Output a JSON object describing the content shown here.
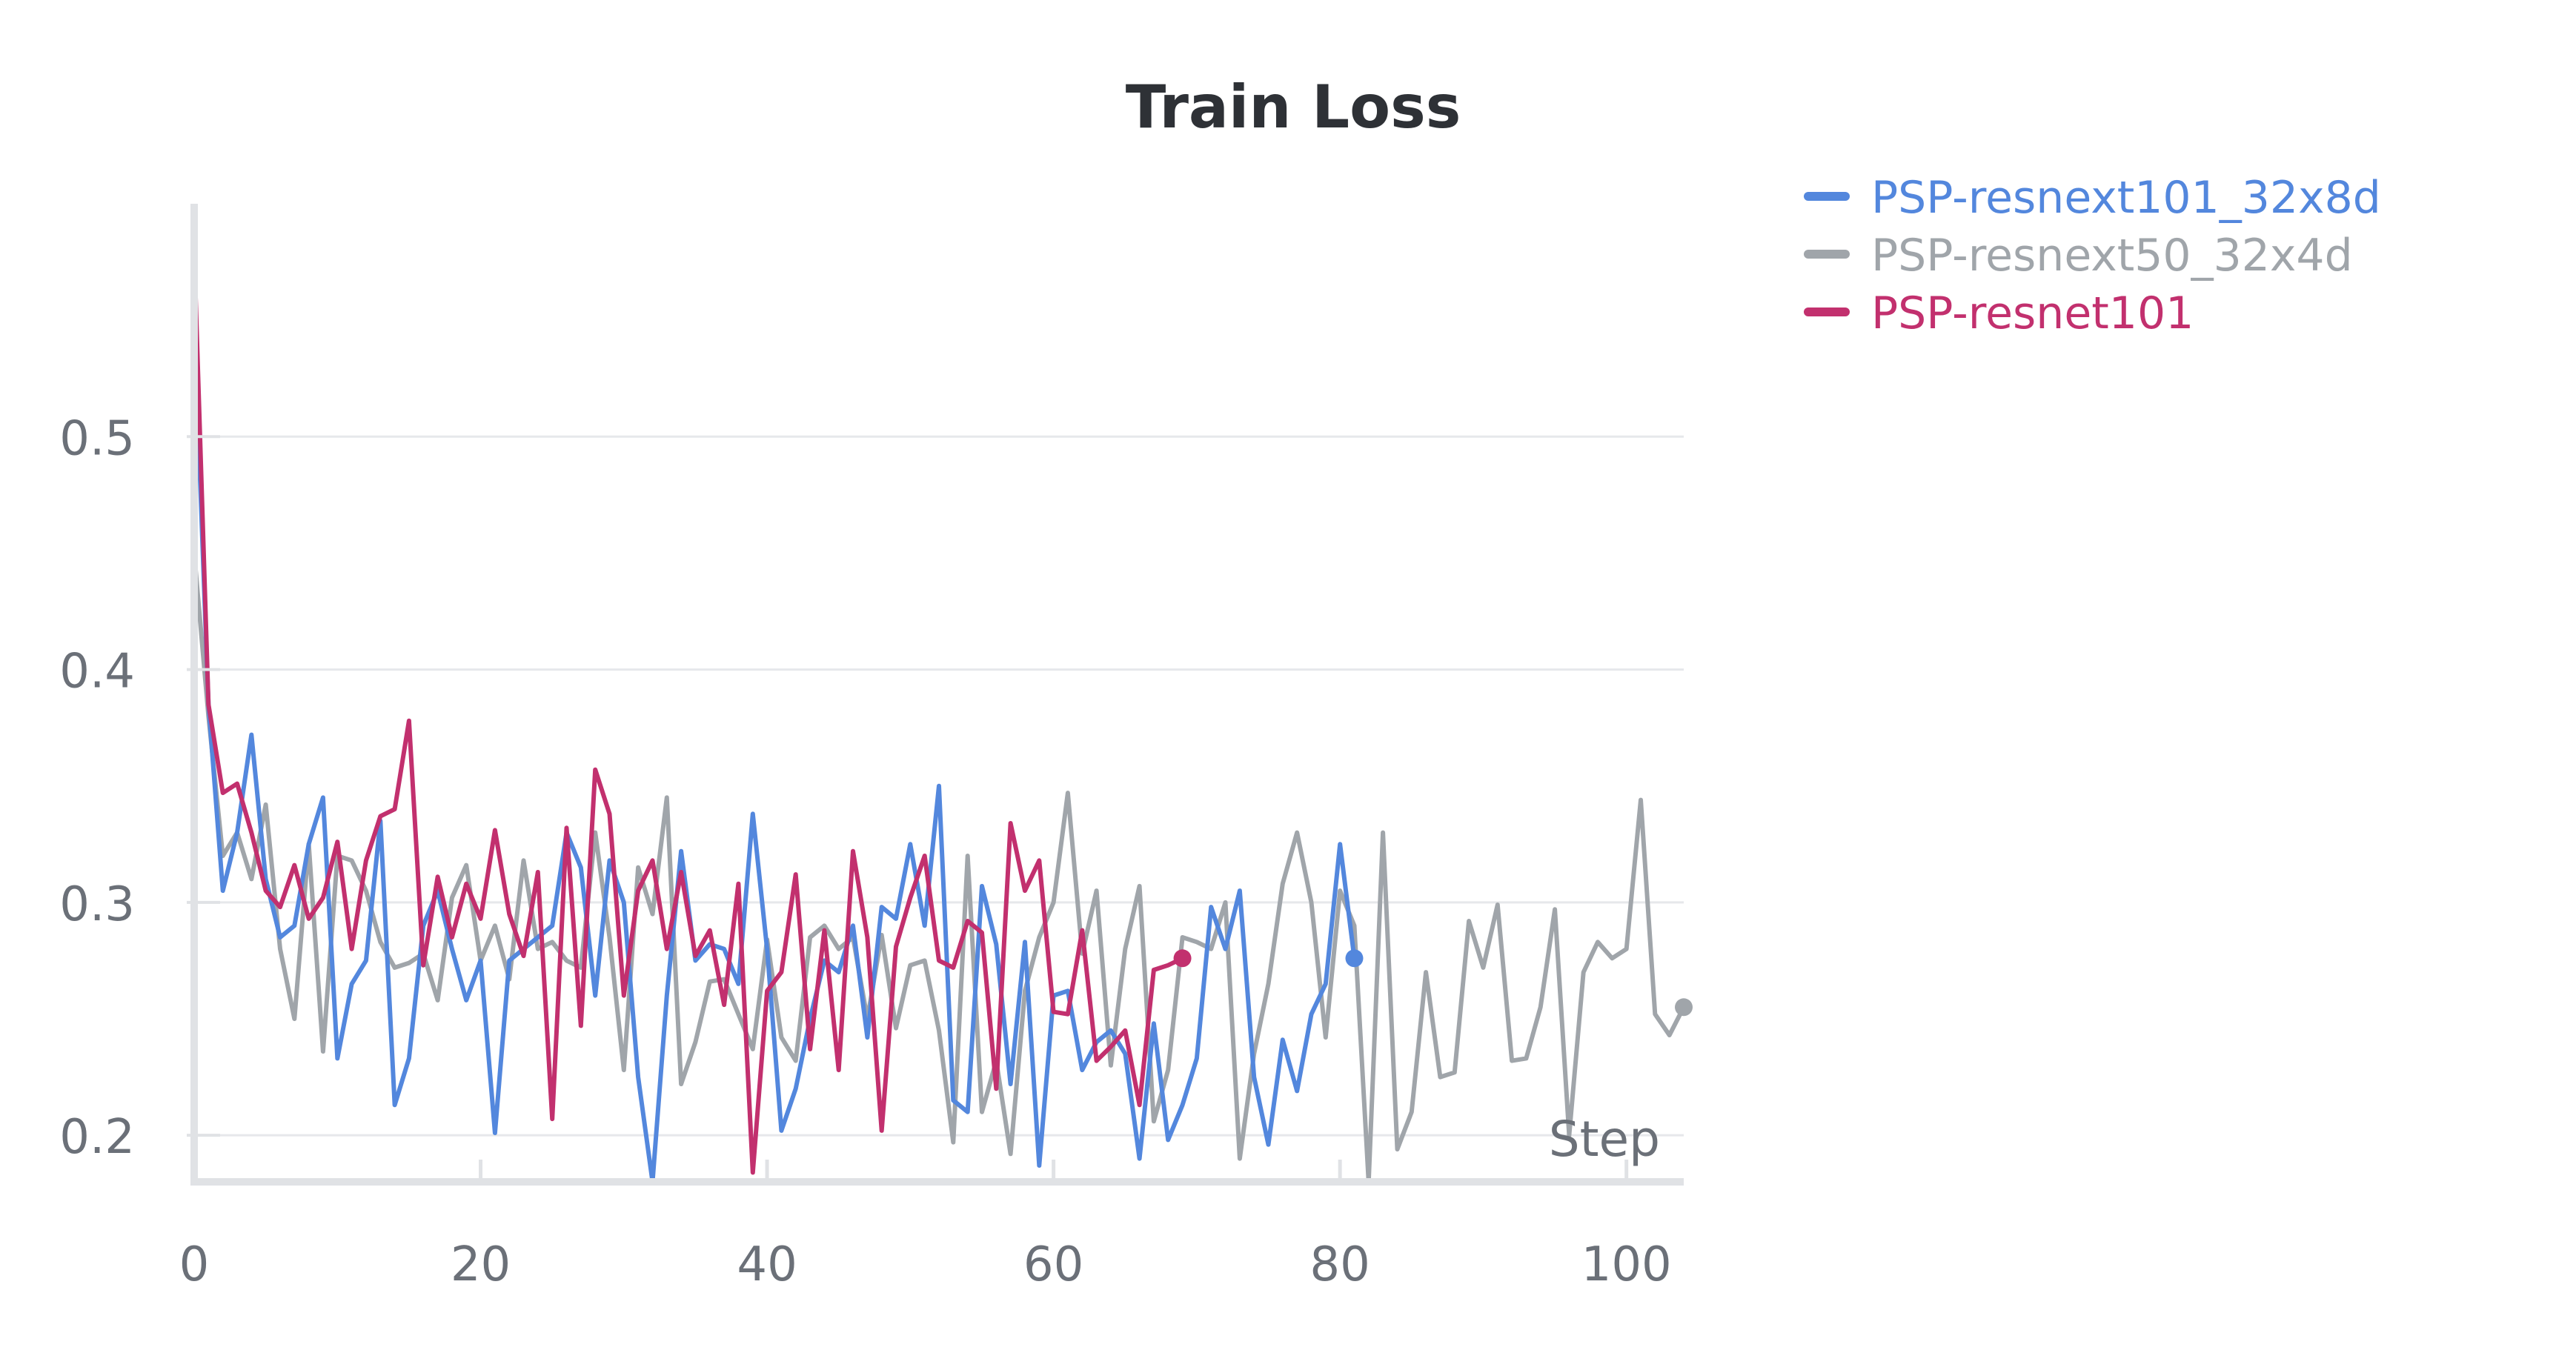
{
  "chart_data": {
    "type": "line",
    "title": "Train Loss",
    "xlabel": "Step",
    "ylabel": "",
    "xlim": [
      0,
      104
    ],
    "ylim": [
      0.18,
      0.6
    ],
    "x_ticks": [
      0,
      20,
      40,
      60,
      80,
      100
    ],
    "y_ticks": [
      0.2,
      0.3,
      0.4,
      0.5
    ],
    "x_tick_labels": [
      "0",
      "20",
      "40",
      "60",
      "80",
      "100"
    ],
    "y_tick_labels": [
      "0.2",
      "0.3",
      "0.4",
      "0.5"
    ],
    "grid": "horizontal",
    "legend_position": "top-right",
    "series": [
      {
        "name": "PSP-resnext101_32x8d",
        "color": "#5387dd",
        "end_marker": true,
        "values": [
          0.55,
          0.385,
          0.305,
          0.33,
          0.372,
          0.31,
          0.285,
          0.29,
          0.325,
          0.345,
          0.233,
          0.265,
          0.275,
          0.335,
          0.213,
          0.233,
          0.29,
          0.305,
          0.28,
          0.258,
          0.275,
          0.201,
          0.275,
          0.28,
          0.285,
          0.29,
          0.33,
          0.315,
          0.26,
          0.318,
          0.3,
          0.225,
          0.18,
          0.26,
          0.322,
          0.275,
          0.282,
          0.28,
          0.265,
          0.338,
          0.28,
          0.202,
          0.22,
          0.25,
          0.275,
          0.27,
          0.29,
          0.242,
          0.298,
          0.293,
          0.325,
          0.29,
          0.35,
          0.215,
          0.21,
          0.307,
          0.282,
          0.222,
          0.283,
          0.187,
          0.26,
          0.262,
          0.228,
          0.24,
          0.245,
          0.235,
          0.19,
          0.248,
          0.198,
          0.213,
          0.233,
          0.298,
          0.28,
          0.305,
          0.225,
          0.196,
          0.241,
          0.219,
          0.252,
          0.265,
          0.325,
          0.276
        ]
      },
      {
        "name": "PSP-resnext50_32x4d",
        "color": "#a0a5aa",
        "end_marker": true,
        "values": [
          0.45,
          0.38,
          0.32,
          0.33,
          0.31,
          0.342,
          0.28,
          0.25,
          0.325,
          0.236,
          0.32,
          0.318,
          0.305,
          0.283,
          0.272,
          0.274,
          0.278,
          0.258,
          0.302,
          0.316,
          0.275,
          0.29,
          0.267,
          0.318,
          0.28,
          0.283,
          0.275,
          0.272,
          0.33,
          0.285,
          0.228,
          0.315,
          0.295,
          0.345,
          0.222,
          0.24,
          0.266,
          0.267,
          0.252,
          0.237,
          0.284,
          0.242,
          0.232,
          0.285,
          0.29,
          0.28,
          0.285,
          0.25,
          0.286,
          0.246,
          0.273,
          0.275,
          0.245,
          0.197,
          0.32,
          0.21,
          0.232,
          0.192,
          0.262,
          0.285,
          0.3,
          0.347,
          0.278,
          0.305,
          0.23,
          0.28,
          0.307,
          0.206,
          0.228,
          0.285,
          0.283,
          0.28,
          0.3,
          0.19,
          0.235,
          0.265,
          0.308,
          0.33,
          0.3,
          0.242,
          0.305,
          0.29,
          0.18,
          0.33,
          0.194,
          0.21,
          0.27,
          0.225,
          0.227,
          0.292,
          0.272,
          0.299,
          0.232,
          0.233,
          0.255,
          0.297,
          0.2,
          0.27,
          0.283,
          0.276,
          0.28,
          0.344,
          0.252,
          0.243,
          0.255
        ]
      },
      {
        "name": "PSP-resnet101",
        "color": "#c2306e",
        "end_marker": true,
        "values": [
          0.58,
          0.385,
          0.347,
          0.351,
          0.33,
          0.305,
          0.298,
          0.316,
          0.293,
          0.302,
          0.326,
          0.28,
          0.318,
          0.337,
          0.34,
          0.378,
          0.273,
          0.311,
          0.285,
          0.308,
          0.293,
          0.331,
          0.295,
          0.277,
          0.313,
          0.207,
          0.332,
          0.247,
          0.357,
          0.338,
          0.26,
          0.305,
          0.318,
          0.28,
          0.313,
          0.277,
          0.288,
          0.256,
          0.308,
          0.184,
          0.262,
          0.27,
          0.312,
          0.237,
          0.288,
          0.228,
          0.322,
          0.285,
          0.202,
          0.281,
          0.302,
          0.32,
          0.275,
          0.272,
          0.292,
          0.287,
          0.22,
          0.334,
          0.305,
          0.318,
          0.253,
          0.252,
          0.288,
          0.232,
          0.238,
          0.245,
          0.213,
          0.271,
          0.273,
          0.276
        ]
      }
    ]
  }
}
